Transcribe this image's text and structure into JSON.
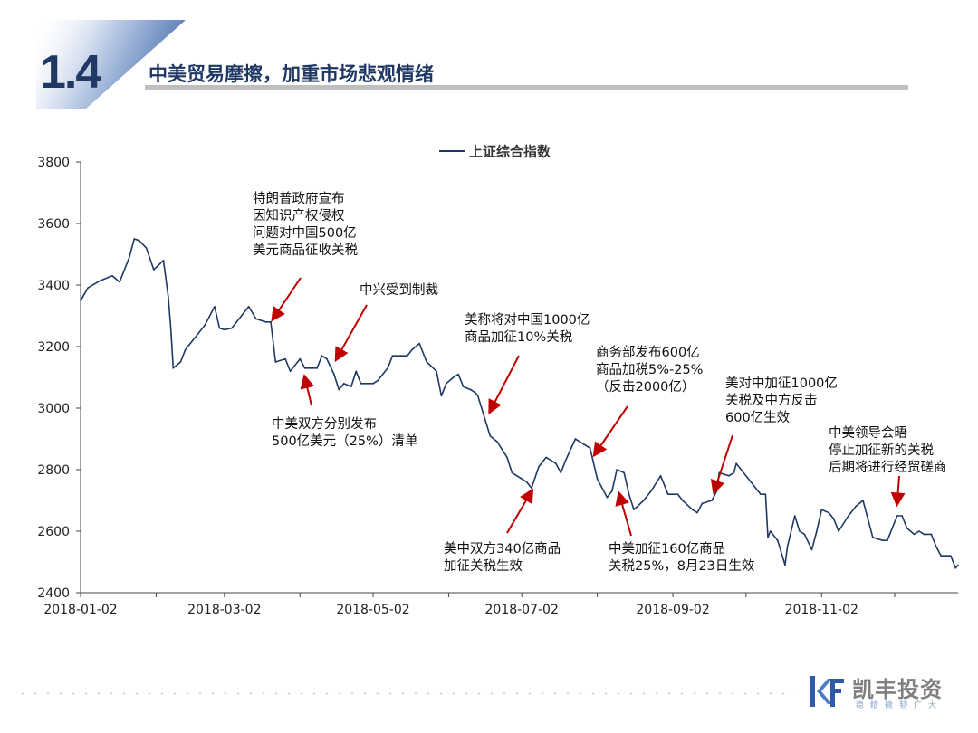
{
  "header": {
    "section_number": "1.4",
    "title": "中美贸易摩擦，加重市场悲观情绪"
  },
  "colors": {
    "line": "#1f3864",
    "accent": "#1f3864",
    "arrow": "#c00000",
    "title_bar": "#bfbfbf"
  },
  "chart_data": {
    "type": "line",
    "title": "",
    "xlabel": "",
    "ylabel": "",
    "legend": {
      "entries": [
        "上证综合指数"
      ],
      "placement": "top-center"
    },
    "ylim": [
      2400,
      3800
    ],
    "yticks": [
      2400,
      2600,
      2800,
      3000,
      3200,
      3400,
      3600,
      3800
    ],
    "xlim": [
      "2018-01-02",
      "2018-12-28"
    ],
    "xticks": [
      "2018-01-02",
      "2018-03-02",
      "2018-05-02",
      "2018-07-02",
      "2018-09-02",
      "2018-11-02"
    ],
    "grid": false,
    "series": [
      {
        "name": "上证综合指数",
        "points": [
          [
            "2018-01-02",
            3349
          ],
          [
            "2018-01-05",
            3391
          ],
          [
            "2018-01-10",
            3414
          ],
          [
            "2018-01-15",
            3430
          ],
          [
            "2018-01-18",
            3410
          ],
          [
            "2018-01-22",
            3490
          ],
          [
            "2018-01-24",
            3550
          ],
          [
            "2018-01-26",
            3545
          ],
          [
            "2018-01-29",
            3520
          ],
          [
            "2018-02-01",
            3450
          ],
          [
            "2018-02-05",
            3480
          ],
          [
            "2018-02-07",
            3360
          ],
          [
            "2018-02-08",
            3260
          ],
          [
            "2018-02-09",
            3130
          ],
          [
            "2018-02-12",
            3150
          ],
          [
            "2018-02-14",
            3190
          ],
          [
            "2018-02-22",
            3270
          ],
          [
            "2018-02-26",
            3330
          ],
          [
            "2018-02-28",
            3260
          ],
          [
            "2018-03-02",
            3255
          ],
          [
            "2018-03-05",
            3260
          ],
          [
            "2018-03-08",
            3290
          ],
          [
            "2018-03-12",
            3330
          ],
          [
            "2018-03-15",
            3290
          ],
          [
            "2018-03-19",
            3280
          ],
          [
            "2018-03-21",
            3280
          ],
          [
            "2018-03-23",
            3150
          ],
          [
            "2018-03-27",
            3160
          ],
          [
            "2018-03-29",
            3120
          ],
          [
            "2018-04-02",
            3160
          ],
          [
            "2018-04-04",
            3130
          ],
          [
            "2018-04-09",
            3130
          ],
          [
            "2018-04-11",
            3170
          ],
          [
            "2018-04-13",
            3160
          ],
          [
            "2018-04-16",
            3110
          ],
          [
            "2018-04-18",
            3060
          ],
          [
            "2018-04-20",
            3080
          ],
          [
            "2018-04-23",
            3070
          ],
          [
            "2018-04-25",
            3120
          ],
          [
            "2018-04-27",
            3080
          ],
          [
            "2018-05-02",
            3080
          ],
          [
            "2018-05-04",
            3090
          ],
          [
            "2018-05-08",
            3130
          ],
          [
            "2018-05-10",
            3170
          ],
          [
            "2018-05-14",
            3170
          ],
          [
            "2018-05-16",
            3170
          ],
          [
            "2018-05-18",
            3190
          ],
          [
            "2018-05-21",
            3210
          ],
          [
            "2018-05-24",
            3150
          ],
          [
            "2018-05-28",
            3120
          ],
          [
            "2018-05-30",
            3040
          ],
          [
            "2018-06-01",
            3080
          ],
          [
            "2018-06-04",
            3100
          ],
          [
            "2018-06-06",
            3110
          ],
          [
            "2018-06-08",
            3070
          ],
          [
            "2018-06-11",
            3060
          ],
          [
            "2018-06-13",
            3050
          ],
          [
            "2018-06-14",
            3040
          ],
          [
            "2018-06-19",
            2910
          ],
          [
            "2018-06-22",
            2890
          ],
          [
            "2018-06-26",
            2840
          ],
          [
            "2018-06-28",
            2790
          ],
          [
            "2018-07-02",
            2770
          ],
          [
            "2018-07-04",
            2760
          ],
          [
            "2018-07-06",
            2740
          ],
          [
            "2018-07-09",
            2810
          ],
          [
            "2018-07-12",
            2840
          ],
          [
            "2018-07-16",
            2820
          ],
          [
            "2018-07-18",
            2790
          ],
          [
            "2018-07-20",
            2830
          ],
          [
            "2018-07-24",
            2900
          ],
          [
            "2018-07-26",
            2890
          ],
          [
            "2018-07-30",
            2870
          ],
          [
            "2018-08-02",
            2770
          ],
          [
            "2018-08-06",
            2710
          ],
          [
            "2018-08-08",
            2730
          ],
          [
            "2018-08-10",
            2800
          ],
          [
            "2018-08-13",
            2790
          ],
          [
            "2018-08-15",
            2720
          ],
          [
            "2018-08-17",
            2670
          ],
          [
            "2018-08-21",
            2700
          ],
          [
            "2018-08-24",
            2730
          ],
          [
            "2018-08-28",
            2780
          ],
          [
            "2018-08-31",
            2720
          ],
          [
            "2018-09-04",
            2720
          ],
          [
            "2018-09-06",
            2700
          ],
          [
            "2018-09-10",
            2670
          ],
          [
            "2018-09-12",
            2660
          ],
          [
            "2018-09-14",
            2690
          ],
          [
            "2018-09-18",
            2700
          ],
          [
            "2018-09-20",
            2730
          ],
          [
            "2018-09-21",
            2790
          ],
          [
            "2018-09-25",
            2780
          ],
          [
            "2018-09-27",
            2790
          ],
          [
            "2018-09-28",
            2820
          ],
          [
            "2018-10-08",
            2720
          ],
          [
            "2018-10-10",
            2720
          ],
          [
            "2018-10-11",
            2580
          ],
          [
            "2018-10-12",
            2600
          ],
          [
            "2018-10-15",
            2570
          ],
          [
            "2018-10-18",
            2490
          ],
          [
            "2018-10-19",
            2550
          ],
          [
            "2018-10-22",
            2650
          ],
          [
            "2018-10-24",
            2600
          ],
          [
            "2018-10-26",
            2590
          ],
          [
            "2018-10-29",
            2540
          ],
          [
            "2018-10-31",
            2600
          ],
          [
            "2018-11-02",
            2670
          ],
          [
            "2018-11-05",
            2660
          ],
          [
            "2018-11-07",
            2640
          ],
          [
            "2018-11-09",
            2600
          ],
          [
            "2018-11-13",
            2650
          ],
          [
            "2018-11-15",
            2670
          ],
          [
            "2018-11-16",
            2680
          ],
          [
            "2018-11-19",
            2700
          ],
          [
            "2018-11-21",
            2640
          ],
          [
            "2018-11-23",
            2580
          ],
          [
            "2018-11-27",
            2570
          ],
          [
            "2018-11-29",
            2570
          ],
          [
            "2018-12-03",
            2650
          ],
          [
            "2018-12-05",
            2650
          ],
          [
            "2018-12-07",
            2610
          ],
          [
            "2018-12-10",
            2590
          ],
          [
            "2018-12-12",
            2600
          ],
          [
            "2018-12-14",
            2590
          ],
          [
            "2018-12-17",
            2590
          ],
          [
            "2018-12-19",
            2550
          ],
          [
            "2018-12-21",
            2520
          ],
          [
            "2018-12-25",
            2520
          ],
          [
            "2018-12-27",
            2480
          ],
          [
            "2018-12-28",
            2490
          ]
        ]
      }
    ],
    "annotations": [
      {
        "text": "特朗普政府宣布\n因知识产权侵权\n问题对中国500亿\n美元商品征收关税",
        "date": "2018-03-22",
        "value": 3290
      },
      {
        "text": "中兴受到制裁",
        "date": "2018-04-17",
        "value": 3160
      },
      {
        "text": "中美双方分别发布\n500亿美元（25%）清单",
        "date": "2018-04-04",
        "value": 3100
      },
      {
        "text": "美称将对中国1000亿\n商品加征10%关税",
        "date": "2018-06-19",
        "value": 2990
      },
      {
        "text": "美中双方340亿商品\n加征关税生效",
        "date": "2018-07-06",
        "value": 2730
      },
      {
        "text": "商务部发布600亿\n商品加税5%-25%\n（反击2000亿）",
        "date": "2018-08-01",
        "value": 2850
      },
      {
        "text": "中美加征160亿商品\nk关税25%，8月23日生效",
        "date": "2018-08-11",
        "value": 2720
      },
      {
        "text": "美对中加征1000亿\n关税及中方反击\n600亿生效",
        "date": "2018-09-19",
        "value": 2730
      },
      {
        "text": "中美领导会晤\n停止加征新的关税\n后期将进行经贸磋商",
        "date": "2018-12-03",
        "value": 2690
      }
    ]
  },
  "branding": {
    "company_name": "凯丰投资",
    "tagline": "稳精微韧广大"
  }
}
